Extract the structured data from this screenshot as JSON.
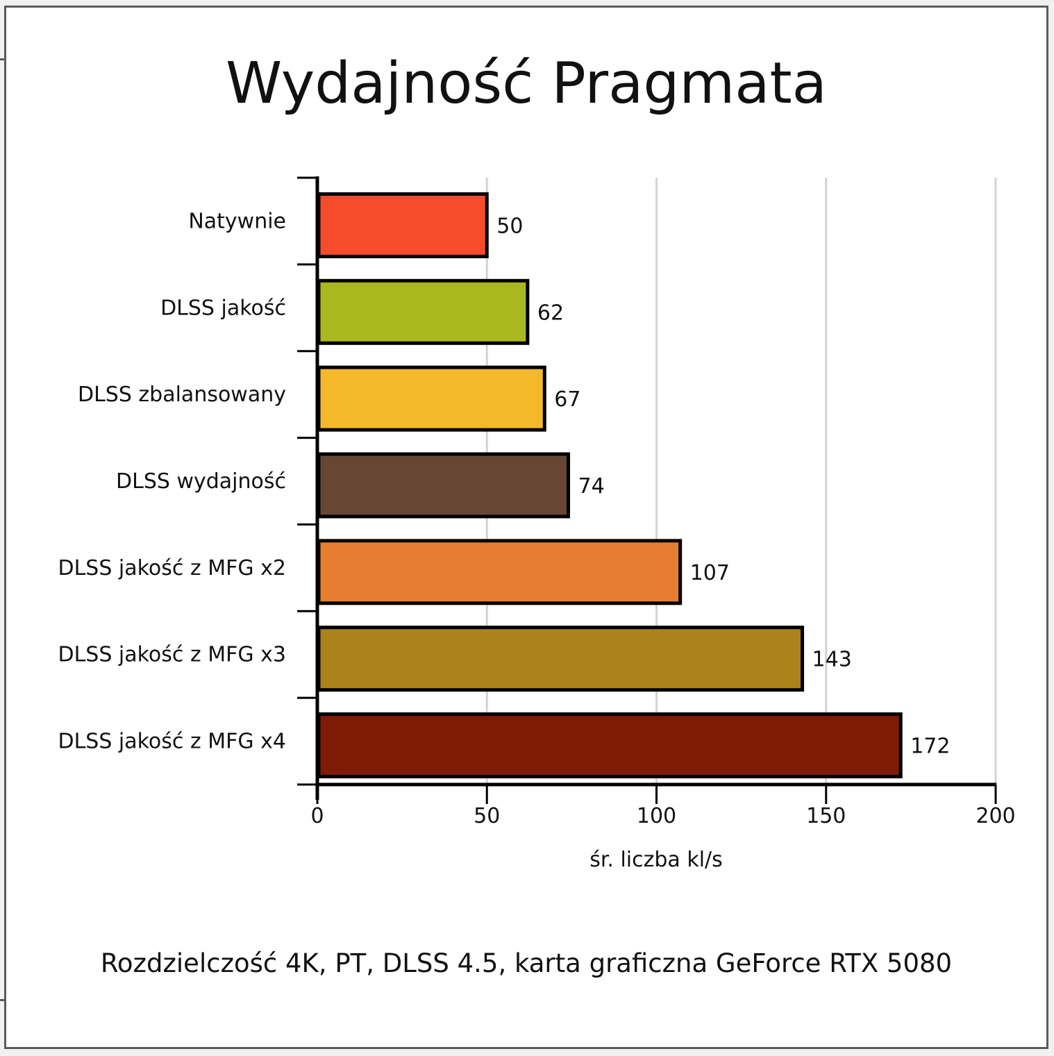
{
  "chart_data": {
    "type": "bar",
    "orientation": "horizontal",
    "title": "Wydajność Pragmata",
    "subtitle": "Rozdzielczość 4K, PT, DLSS 4.5, karta graficzna GeForce RTX 5080",
    "xlabel": "śr. liczba kl/s",
    "ylabel": "",
    "xlim": [
      0,
      200
    ],
    "xticks": [
      0,
      50,
      100,
      150,
      200
    ],
    "grid": "vertical",
    "legend": "none",
    "categories": [
      "Natywnie",
      "DLSS jakość",
      "DLSS zbalansowany",
      "DLSS wydajność",
      "DLSS jakość z MFG x2",
      "DLSS jakość z MFG x3",
      "DLSS jakość z MFG x4"
    ],
    "values": [
      50,
      62,
      67,
      74,
      107,
      143,
      172
    ],
    "colors": [
      "#f64c2c",
      "#a9b81e",
      "#f4b82b",
      "#674634",
      "#e67e31",
      "#ac821d",
      "#7e1a06"
    ]
  },
  "colors": {
    "background": "#f0f1f0",
    "panel": "#ffffff",
    "panel_border": "#5a5c5c",
    "gridline": "#d3d3d3",
    "axis": "#000000"
  }
}
